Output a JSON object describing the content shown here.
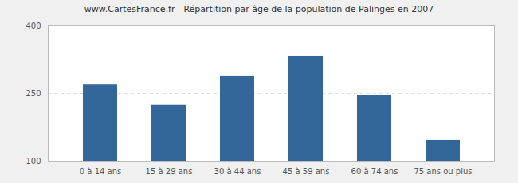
{
  "chart_data": {
    "type": "bar",
    "title": "www.CartesFrance.fr - Répartition par âge de la population de Palinges en 2007",
    "categories": [
      "0 à 14 ans",
      "15 à 29 ans",
      "30 à 44 ans",
      "45 à 59 ans",
      "60 à 74 ans",
      "75 ans ou plus"
    ],
    "values": [
      269,
      224,
      289,
      333,
      245,
      146
    ],
    "color": "#336699",
    "ylim": [
      100,
      400
    ],
    "yticks": [
      100,
      250,
      400
    ],
    "grid": true
  }
}
